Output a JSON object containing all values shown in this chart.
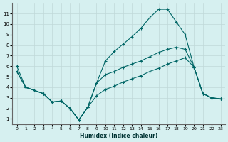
{
  "xlabel": "Humidex (Indice chaleur)",
  "bg_color": "#d6f0f0",
  "grid_color": "#c0d8d8",
  "line_color": "#006666",
  "x_values": [
    0,
    1,
    2,
    3,
    4,
    5,
    6,
    7,
    8,
    9,
    10,
    11,
    12,
    13,
    14,
    15,
    16,
    17,
    18,
    19,
    20,
    21,
    22,
    23
  ],
  "line1": [
    6.0,
    4.0,
    3.7,
    3.4,
    2.6,
    2.7,
    2.0,
    0.9,
    2.1,
    4.4,
    6.5,
    7.4,
    8.1,
    8.8,
    9.6,
    10.6,
    11.4,
    11.4,
    10.2,
    9.0,
    5.9,
    3.4,
    3.0,
    2.9
  ],
  "line2": [
    5.5,
    4.0,
    3.7,
    3.4,
    2.6,
    2.7,
    2.0,
    0.9,
    2.1,
    4.4,
    5.2,
    5.5,
    5.9,
    6.2,
    6.5,
    6.9,
    7.3,
    7.6,
    7.8,
    7.6,
    5.9,
    3.4,
    3.0,
    2.9
  ],
  "line3": [
    5.5,
    4.0,
    3.7,
    3.4,
    2.6,
    2.7,
    2.0,
    0.9,
    2.1,
    3.2,
    3.8,
    4.1,
    4.5,
    4.8,
    5.1,
    5.5,
    5.8,
    6.2,
    6.5,
    6.8,
    5.9,
    3.4,
    3.0,
    2.9
  ],
  "ylim": [
    0.5,
    12
  ],
  "yticks": [
    1,
    2,
    3,
    4,
    5,
    6,
    7,
    8,
    9,
    10,
    11
  ],
  "xlim": [
    -0.5,
    23.5
  ],
  "xticks": [
    0,
    1,
    2,
    3,
    4,
    5,
    6,
    7,
    8,
    9,
    10,
    11,
    12,
    13,
    14,
    15,
    16,
    17,
    18,
    19,
    20,
    21,
    22,
    23
  ]
}
